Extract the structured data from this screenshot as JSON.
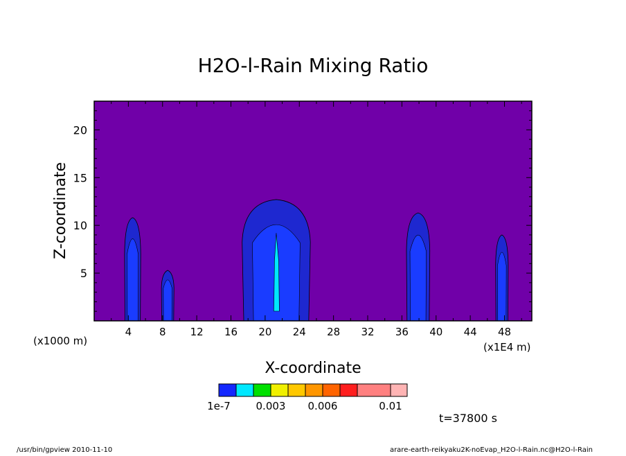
{
  "chart_data": {
    "type": "heatmap",
    "title": "H2O-l-Rain Mixing Ratio",
    "xlabel": "X-coordinate",
    "ylabel": "Z-coordinate",
    "x_unit": "(x1E4 m)",
    "y_unit": "(x1000 m)",
    "xlim": [
      0,
      51.2
    ],
    "ylim": [
      0,
      23
    ],
    "x_ticks": [
      4,
      8,
      12,
      16,
      20,
      24,
      28,
      32,
      36,
      40,
      44,
      48
    ],
    "y_ticks": [
      5,
      10,
      15,
      20
    ],
    "colors": {
      "background": "#7000a8",
      "level1": "#1a3cff",
      "level0_edge": "#1e28d0",
      "cyan": "#00e8ff"
    },
    "plumes": [
      {
        "x_center": 4.5,
        "top": 10.8,
        "half_width": 0.9
      },
      {
        "x_center": 8.6,
        "top": 5.3,
        "half_width": 0.7
      },
      {
        "x_center": 21.3,
        "top": 12.7,
        "half_width": 3.8
      },
      {
        "x_center": 37.9,
        "top": 11.3,
        "half_width": 1.3
      },
      {
        "x_center": 47.7,
        "top": 9.0,
        "half_width": 0.7
      }
    ],
    "colorbar": {
      "colors": [
        "#1428ff",
        "#00e8ff",
        "#00e000",
        "#f0f000",
        "#ffc800",
        "#ff9600",
        "#ff6400",
        "#ff1e1e",
        "#ff8080",
        "#ffb4b4"
      ],
      "labels": [
        "1e-7",
        "0.003",
        "0.006",
        "0.01"
      ]
    },
    "time_label": "t=37800 s"
  },
  "footer": {
    "left": "/usr/bin/gpview  2010-11-10",
    "right": "arare-earth-reikyaku2K-noEvap_H2O-l-Rain.nc@H2O-l-Rain"
  }
}
